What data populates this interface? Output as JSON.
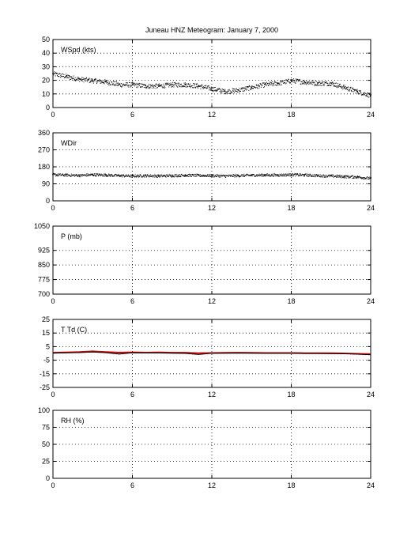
{
  "title": "Juneau HNZ Meteogram:    January  7, 2000",
  "chart_data": [
    {
      "id": "wspd",
      "type": "scatter",
      "label": "WSpd (kts)",
      "xlim": [
        0,
        24
      ],
      "xticks": [
        "0",
        "6",
        "12",
        "18",
        "24"
      ],
      "ylim": [
        0,
        50
      ],
      "yticks": [
        "0",
        "10",
        "20",
        "30",
        "40",
        "50"
      ],
      "grid": true,
      "series": [
        {
          "color": "#000000",
          "x": [
            0,
            1,
            2,
            3,
            4,
            5,
            6,
            7,
            8,
            9,
            10,
            11,
            12,
            13,
            14,
            15,
            16,
            17,
            18,
            19,
            20,
            21,
            22,
            23,
            24
          ],
          "y": [
            25,
            23,
            21,
            20,
            19,
            17,
            17,
            16,
            16,
            17,
            17,
            16,
            14,
            12,
            13,
            15,
            17,
            18,
            20,
            19,
            18,
            18,
            15,
            12,
            9
          ]
        }
      ]
    },
    {
      "id": "wdir",
      "type": "scatter",
      "label": "WDir",
      "xlim": [
        0,
        24
      ],
      "xticks": [
        "0",
        "6",
        "12",
        "18",
        "24"
      ],
      "ylim": [
        0,
        360
      ],
      "yticks": [
        "0",
        "90",
        "180",
        "270",
        "360"
      ],
      "grid": true,
      "series": [
        {
          "color": "#000000",
          "x": [
            0,
            1,
            2,
            3,
            4,
            5,
            6,
            7,
            8,
            9,
            10,
            11,
            12,
            13,
            14,
            15,
            16,
            17,
            18,
            19,
            20,
            21,
            22,
            23,
            24
          ],
          "y": [
            140,
            138,
            136,
            140,
            138,
            135,
            133,
            135,
            133,
            135,
            137,
            136,
            135,
            133,
            135,
            137,
            138,
            138,
            140,
            138,
            135,
            133,
            130,
            128,
            120
          ]
        }
      ]
    },
    {
      "id": "pres",
      "type": "line",
      "label": "P (mb)",
      "xlim": [
        0,
        24
      ],
      "xticks": [
        "0",
        "6",
        "12",
        "18",
        "24"
      ],
      "ylim": [
        700,
        1050
      ],
      "yticks": [
        "700",
        "775",
        "850",
        "925",
        "1050"
      ],
      "ytickvals": [
        700,
        775,
        850,
        925,
        1050
      ],
      "grid": true,
      "series": []
    },
    {
      "id": "ttd",
      "type": "line",
      "label": "T Td (C)",
      "xlim": [
        0,
        24
      ],
      "xticks": [
        "0",
        "6",
        "12",
        "18",
        "24"
      ],
      "ylim": [
        -25,
        25
      ],
      "yticks": [
        "-25",
        "-15",
        "-5",
        "5",
        "15",
        "25"
      ],
      "grid": true,
      "series": [
        {
          "color": "#cc0000",
          "x": [
            0,
            1,
            2,
            3,
            4,
            5,
            6,
            7,
            8,
            9,
            10,
            11,
            12,
            13,
            14,
            15,
            16,
            17,
            18,
            19,
            20,
            21,
            22,
            23,
            24
          ],
          "y": [
            0.5,
            0.7,
            1.0,
            1.5,
            1.0,
            0.6,
            0.8,
            0.6,
            0.7,
            0.5,
            0.5,
            0.2,
            0.3,
            0.4,
            0.5,
            0.4,
            0.3,
            0.3,
            0.3,
            0.2,
            0.2,
            0.1,
            0,
            -0.3,
            -0.5
          ]
        },
        {
          "color": "#000000",
          "x": [
            0,
            1,
            2,
            3,
            4,
            5,
            6,
            7,
            8,
            9,
            10,
            11,
            12,
            13,
            14,
            15,
            16,
            17,
            18,
            19,
            20,
            21,
            22,
            23,
            24
          ],
          "y": [
            0.2,
            0.4,
            0.6,
            1.0,
            0.5,
            -0.5,
            0.4,
            0.3,
            0.3,
            0.2,
            0.0,
            -0.8,
            0.1,
            0.2,
            0.3,
            0.2,
            0.1,
            0.1,
            0.1,
            0.0,
            0.0,
            -0.1,
            -0.2,
            -0.6,
            -1.0
          ]
        }
      ]
    },
    {
      "id": "rh",
      "type": "line",
      "label": "RH (%)",
      "xlim": [
        0,
        24
      ],
      "xticks": [
        "0",
        "6",
        "12",
        "18",
        "24"
      ],
      "ylim": [
        0,
        100
      ],
      "yticks": [
        "0",
        "25",
        "50",
        "75",
        "100"
      ],
      "grid": true,
      "series": []
    }
  ]
}
